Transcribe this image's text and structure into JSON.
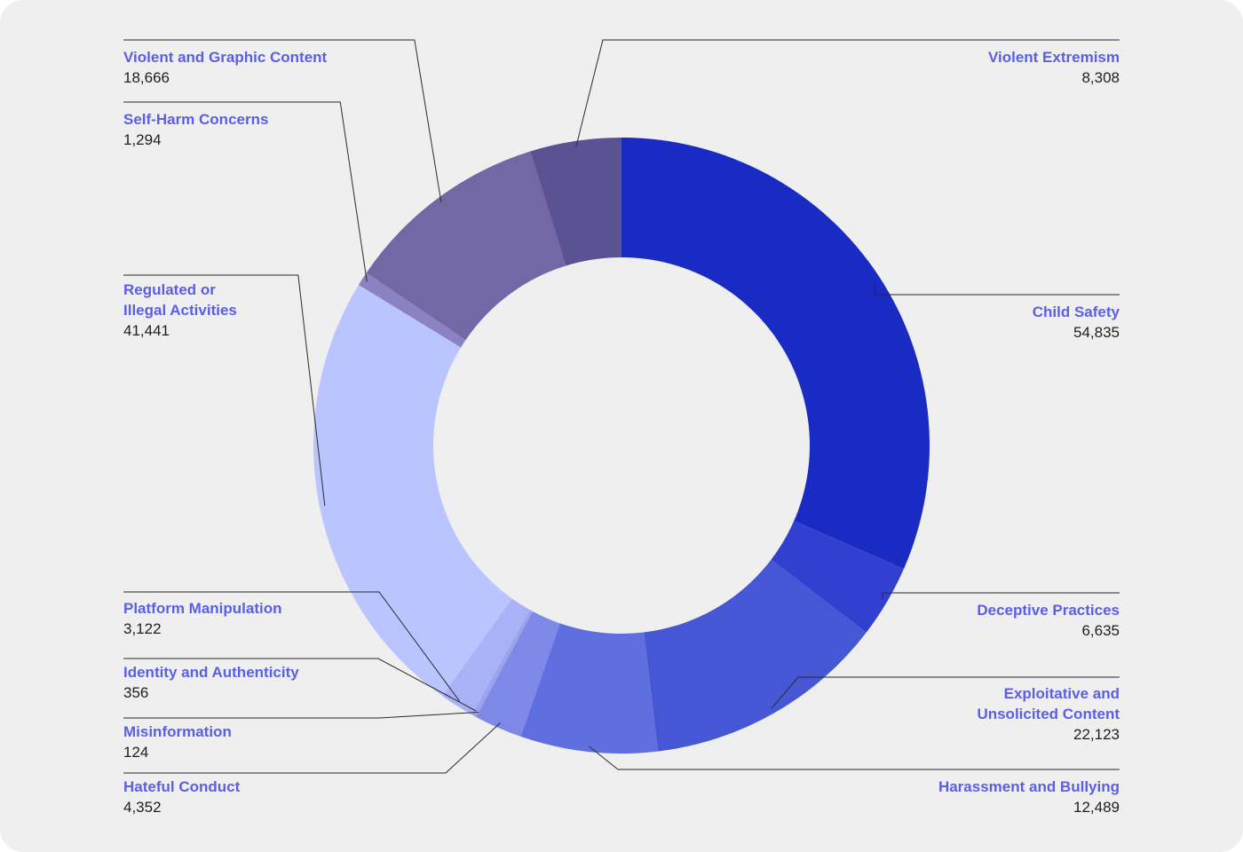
{
  "chart_data": {
    "type": "pie",
    "variant": "donut",
    "start": "top, clockwise",
    "label_color": "#5a5fe6",
    "value_color": "#1e1e1e",
    "background_color": "#efefef",
    "slices": [
      {
        "label": [
          "Child Safety"
        ],
        "value": 54835,
        "value_text": "54,835",
        "color": "#1a2bc4"
      },
      {
        "label": [
          "Deceptive Practices"
        ],
        "value": 6635,
        "value_text": "6,635",
        "color": "#3140cf"
      },
      {
        "label": [
          "Exploitative and",
          "Unsolicited Content"
        ],
        "value": 22123,
        "value_text": "22,123",
        "color": "#4657d6"
      },
      {
        "label": [
          "Harassment and Bullying"
        ],
        "value": 12489,
        "value_text": "12,489",
        "color": "#5f6fe0"
      },
      {
        "label": [
          "Hateful Conduct"
        ],
        "value": 4352,
        "value_text": "4,352",
        "color": "#7e88e6"
      },
      {
        "label": [
          "Misinformation"
        ],
        "value": 124,
        "value_text": "124",
        "color": "#9098ec"
      },
      {
        "label": [
          "Identity and Authenticity"
        ],
        "value": 356,
        "value_text": "356",
        "color": "#9aa3f0"
      },
      {
        "label": [
          "Platform Manipulation"
        ],
        "value": 3122,
        "value_text": "3,122",
        "color": "#a9b2f7"
      },
      {
        "label": [
          "Regulated or",
          "Illegal Activities"
        ],
        "value": 41441,
        "value_text": "41,441",
        "color": "#bac4fe"
      },
      {
        "label": [
          "Self-Harm Concerns"
        ],
        "value": 1294,
        "value_text": "1,294",
        "color": "#8a82c2"
      },
      {
        "label": [
          "Violent and Graphic Content"
        ],
        "value": 18666,
        "value_text": "18,666",
        "color": "#7268a6"
      },
      {
        "label": [
          "Violent Extremism"
        ],
        "value": 8308,
        "value_text": "8,308",
        "color": "#5b5293"
      }
    ]
  }
}
